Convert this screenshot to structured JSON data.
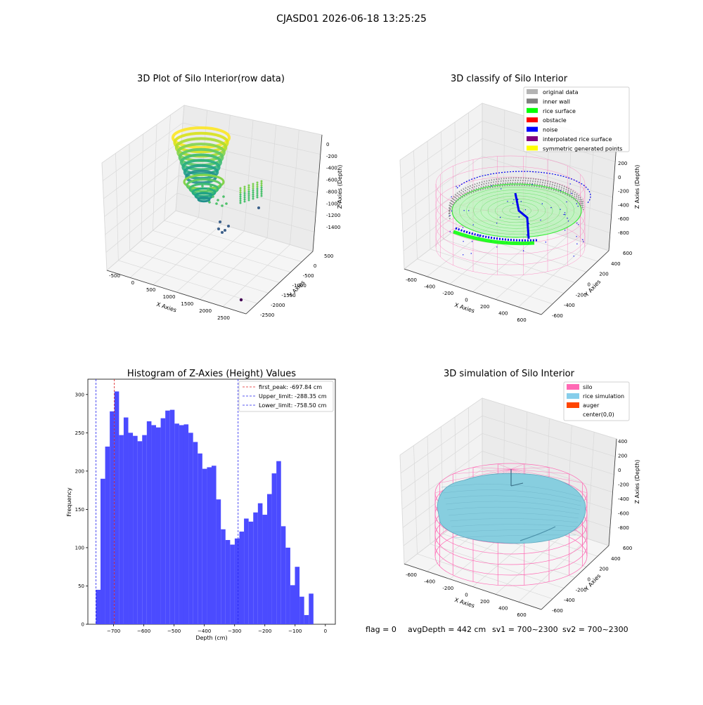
{
  "figure": {
    "suptitle": "CJASD01 2026-06-18 13:25:25",
    "status": {
      "flag": "flag = 0",
      "avg_depth": "avgDepth = 442 cm",
      "sv1": "sv1 = 700~2300",
      "sv2": "sv2 = 700~2300"
    }
  },
  "colors": {
    "histogram": "#4b4bff",
    "first_peak": "#dd2222",
    "limits": "#2222ee",
    "pink": "#ff69b4",
    "rice_blue": "#87cedf",
    "green": "#00ee00"
  },
  "chart_data": [
    {
      "type": "scatter3d",
      "title": "3D Plot of Silo Interior(row data)",
      "xlabel": "X Axies",
      "ylabel": "Y Axies",
      "zlabel": "Z Axies (Depth)",
      "x_ticks": [
        "-500",
        "0",
        "500",
        "1000",
        "1500",
        "2000",
        "2500"
      ],
      "y_ticks": [
        "500",
        "0",
        "-500",
        "-1000",
        "-1500",
        "-2000",
        "-2500"
      ],
      "z_ticks": [
        "0",
        "-200",
        "-400",
        "-600",
        "-800",
        "-1000",
        "-1200",
        "-1400"
      ],
      "colormap": "viridis"
    },
    {
      "type": "scatter3d",
      "title": "3D classify of Silo Interior",
      "xlabel": "X Axies",
      "ylabel": "Y Axies",
      "zlabel": "Z Axies (Depth)",
      "x_ticks": [
        "-600",
        "-400",
        "-200",
        "0",
        "200",
        "400",
        "600"
      ],
      "y_ticks": [
        "600",
        "400",
        "200",
        "0",
        "-200",
        "-400",
        "-600"
      ],
      "z_ticks": [
        "200",
        "0",
        "-200",
        "-400",
        "-600",
        "-800"
      ],
      "legend": [
        {
          "label": "original data",
          "color": "#b4b4b4"
        },
        {
          "label": "inner wall",
          "color": "#808080"
        },
        {
          "label": "rice surface",
          "color": "#00ff00"
        },
        {
          "label": "obstacle",
          "color": "#ff0000"
        },
        {
          "label": "noise",
          "color": "#0000ff"
        },
        {
          "label": "interpolated rice surface",
          "color": "#800080"
        },
        {
          "label": "symmetric generated points",
          "color": "#ffff00"
        }
      ],
      "legend_position": "top-right"
    },
    {
      "type": "bar",
      "title": "Histogram of Z-Axies (Height) Values",
      "xlabel": "Depth (cm)",
      "ylabel": "Frequency",
      "xlim": [
        -785,
        33
      ],
      "ylim": [
        0,
        320
      ],
      "x_ticks": [
        -700,
        -600,
        -500,
        -400,
        -300,
        -200,
        -100,
        0
      ],
      "y_ticks": [
        0,
        50,
        100,
        150,
        200,
        250,
        300
      ],
      "bin_start": -758.5,
      "bin_width": 15.3,
      "values": [
        45,
        190,
        232,
        278,
        304,
        247,
        270,
        250,
        246,
        239,
        247,
        265,
        260,
        257,
        269,
        279,
        280,
        262,
        260,
        261,
        250,
        238,
        223,
        203,
        205,
        207,
        163,
        124,
        110,
        104,
        112,
        121,
        138,
        134,
        146,
        158,
        143,
        170,
        197,
        213,
        128,
        100,
        51,
        75,
        36,
        12,
        40
      ],
      "vlines": [
        {
          "label": "first_peak: -697.84 cm",
          "x": -697.84,
          "color": "#dd2222"
        },
        {
          "label": "Upper_limit: -288.35 cm",
          "x": -288.35,
          "color": "#2222ee"
        },
        {
          "label": "Lower_limit: -758.50 cm",
          "x": -758.5,
          "color": "#2222ee"
        }
      ],
      "legend_position": "top-right"
    },
    {
      "type": "surface3d",
      "title": "3D simulation of Silo Interior",
      "xlabel": "X Axies",
      "ylabel": "Y Axies",
      "zlabel": "Z Axies (Depth)",
      "x_ticks": [
        "-600",
        "-400",
        "-200",
        "0",
        "200",
        "400",
        "600"
      ],
      "y_ticks": [
        "600",
        "400",
        "200",
        "0",
        "-200",
        "-400",
        "-600"
      ],
      "z_ticks": [
        "400",
        "200",
        "0",
        "-200",
        "-400",
        "-600",
        "-800"
      ],
      "legend": [
        {
          "label": "silo",
          "color": "#ff69b4"
        },
        {
          "label": "rice simulation",
          "color": "#87ceeb"
        },
        {
          "label": "auger",
          "color": "#ff4500"
        },
        {
          "label": "center(0,0)",
          "color": "#ffffff"
        }
      ],
      "legend_position": "top-right"
    }
  ]
}
